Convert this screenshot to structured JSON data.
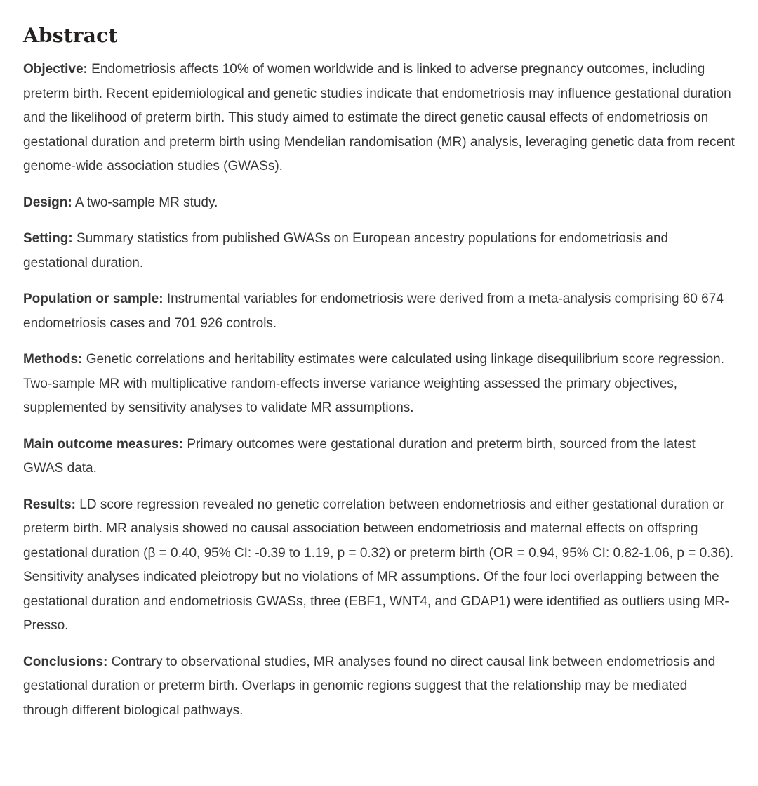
{
  "abstract": {
    "title": "Abstract",
    "sections": [
      {
        "label": "Objective:",
        "text": "Endometriosis affects 10% of women worldwide and is linked to adverse pregnancy outcomes, including preterm birth. Recent epidemiological and genetic studies indicate that endometriosis may influence gestational duration and the likelihood of preterm birth. This study aimed to estimate the direct genetic causal effects of endometriosis on gestational duration and preterm birth using Mendelian randomisation (MR) analysis, leveraging genetic data from recent genome-wide association studies (GWASs)."
      },
      {
        "label": "Design:",
        "text": "A two-sample MR study."
      },
      {
        "label": "Setting:",
        "text": "Summary statistics from published GWASs on European ancestry populations for endometriosis and gestational duration."
      },
      {
        "label": "Population or sample:",
        "text": "Instrumental variables for endometriosis were derived from a meta-analysis comprising 60 674 endometriosis cases and 701 926 controls."
      },
      {
        "label": "Methods:",
        "text": "Genetic correlations and heritability estimates were calculated using linkage disequilibrium score regression. Two-sample MR with multiplicative random-effects inverse variance weighting assessed the primary objectives, supplemented by sensitivity analyses to validate MR assumptions."
      },
      {
        "label": "Main outcome measures:",
        "text": "Primary outcomes were gestational duration and preterm birth, sourced from the latest GWAS data."
      },
      {
        "label": "Results:",
        "text": "LD score regression revealed no genetic correlation between endometriosis and either gestational duration or preterm birth. MR analysis showed no causal association between endometriosis and maternal effects on offspring gestational duration (β = 0.40, 95% CI: -0.39 to 1.19, p = 0.32) or preterm birth (OR = 0.94, 95% CI: 0.82-1.06, p = 0.36). Sensitivity analyses indicated pleiotropy but no violations of MR assumptions. Of the four loci overlapping between the gestational duration and endometriosis GWASs, three (EBF1, WNT4, and GDAP1) were identified as outliers using MR-Presso."
      },
      {
        "label": "Conclusions:",
        "text": "Contrary to observational studies, MR analyses found no direct causal link between endometriosis and gestational duration or preterm birth. Overlaps in genomic regions suggest that the relationship may be mediated through different biological pathways."
      }
    ]
  },
  "colors": {
    "background": "#ffffff",
    "heading_text": "#242120",
    "body_text": "#363636"
  }
}
